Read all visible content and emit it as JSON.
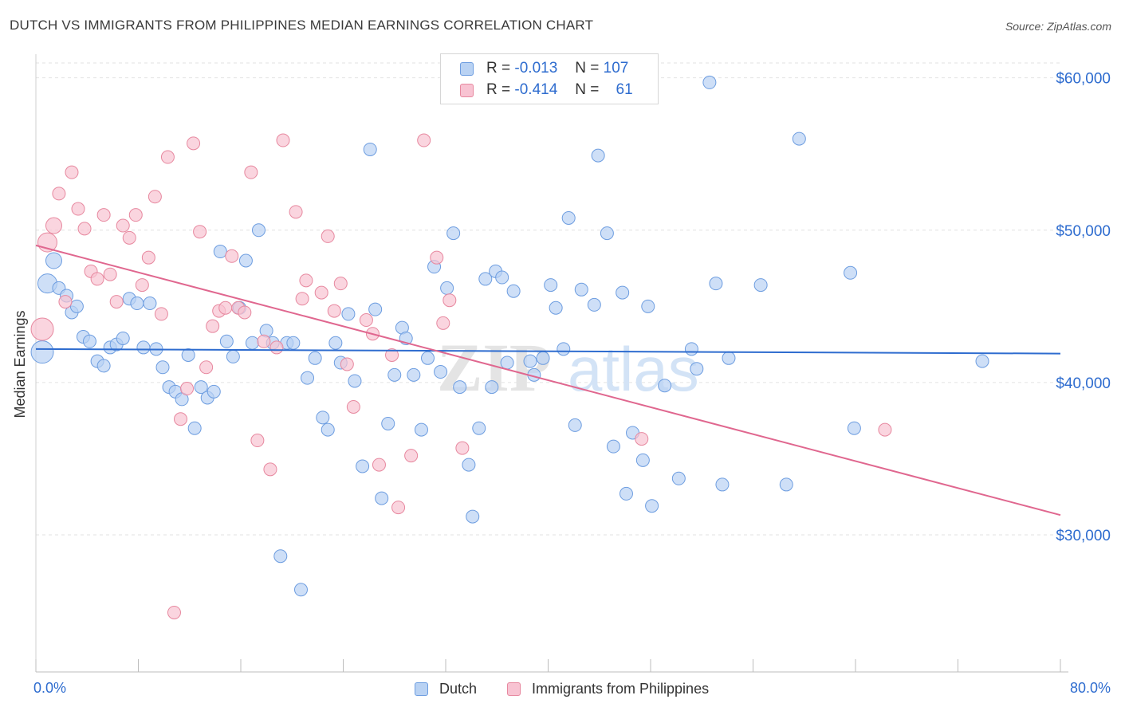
{
  "header": {
    "title": "DUTCH VS IMMIGRANTS FROM PHILIPPINES MEDIAN EARNINGS CORRELATION CHART",
    "source": "Source: ZipAtlas.com"
  },
  "legend_box": {
    "rows": [
      {
        "r_label": "R =",
        "r_value": "-0.013",
        "n_label": "N =",
        "n_value": "107"
      },
      {
        "r_label": "R =",
        "r_value": "-0.414",
        "n_label": "N =",
        "n_value": "61"
      }
    ]
  },
  "bottom_legend": {
    "series1": "Dutch",
    "series2": "Immigrants from Philippines"
  },
  "watermark": {
    "zip": "ZIP",
    "atlas": "atlas"
  },
  "colors": {
    "blue_fill": "#b9d2f3",
    "blue_stroke": "#6d9de0",
    "blue_line": "#2e6ccf",
    "pink_fill": "#f8c3d2",
    "pink_stroke": "#e7889f",
    "pink_line": "#e0678f",
    "tick_label": "#2e6ccf",
    "grid": "#e2e2e2"
  },
  "chart_data": {
    "type": "scatter",
    "title": "DUTCH VS IMMIGRANTS FROM PHILIPPINES MEDIAN EARNINGS CORRELATION CHART",
    "xlabel": "",
    "ylabel": "Median Earnings",
    "xlim": [
      0,
      80
    ],
    "ylim": [
      21000,
      61500
    ],
    "x_tick_labels": [
      {
        "value": 0,
        "label": "0.0%"
      },
      {
        "value": 80,
        "label": "80.0%"
      }
    ],
    "y_ticks": [
      {
        "value": 30000,
        "label": "$30,000"
      },
      {
        "value": 40000,
        "label": "$40,000"
      },
      {
        "value": 50000,
        "label": "$50,000"
      },
      {
        "value": 60000,
        "label": "$60,000"
      }
    ],
    "grid": "horizontal dashed",
    "legend_position": "top-center",
    "series": [
      {
        "name": "Dutch",
        "r": -0.013,
        "n": 107,
        "trend": {
          "x": [
            0,
            80
          ],
          "y": [
            42200,
            41900
          ]
        },
        "points": [
          [
            0.5,
            42000
          ],
          [
            0.9,
            46500
          ],
          [
            1.4,
            48000
          ],
          [
            1.8,
            46200
          ],
          [
            2.4,
            45700
          ],
          [
            2.8,
            44600
          ],
          [
            3.2,
            45000
          ],
          [
            3.7,
            43000
          ],
          [
            4.2,
            42700
          ],
          [
            4.8,
            41400
          ],
          [
            5.3,
            41100
          ],
          [
            5.8,
            42300
          ],
          [
            6.3,
            42500
          ],
          [
            6.8,
            42900
          ],
          [
            7.3,
            45500
          ],
          [
            7.9,
            45200
          ],
          [
            8.4,
            42300
          ],
          [
            8.9,
            45200
          ],
          [
            9.4,
            42200
          ],
          [
            9.9,
            41000
          ],
          [
            10.4,
            39700
          ],
          [
            10.9,
            39400
          ],
          [
            11.4,
            38900
          ],
          [
            11.9,
            41800
          ],
          [
            12.4,
            37000
          ],
          [
            12.9,
            39700
          ],
          [
            13.4,
            39000
          ],
          [
            13.9,
            39400
          ],
          [
            14.4,
            48600
          ],
          [
            14.9,
            42700
          ],
          [
            15.4,
            41700
          ],
          [
            15.9,
            44900
          ],
          [
            16.4,
            48000
          ],
          [
            16.9,
            42600
          ],
          [
            17.4,
            50000
          ],
          [
            18.0,
            43400
          ],
          [
            18.5,
            42600
          ],
          [
            19.1,
            28600
          ],
          [
            19.6,
            42600
          ],
          [
            20.1,
            42600
          ],
          [
            20.7,
            26400
          ],
          [
            21.2,
            40300
          ],
          [
            21.8,
            41600
          ],
          [
            22.4,
            37700
          ],
          [
            22.8,
            36900
          ],
          [
            23.4,
            42600
          ],
          [
            23.8,
            41300
          ],
          [
            24.4,
            44500
          ],
          [
            24.9,
            40100
          ],
          [
            25.5,
            34500
          ],
          [
            26.1,
            55300
          ],
          [
            26.5,
            44800
          ],
          [
            27.0,
            32400
          ],
          [
            27.5,
            37300
          ],
          [
            28.0,
            40500
          ],
          [
            28.6,
            43600
          ],
          [
            28.9,
            42900
          ],
          [
            29.5,
            40500
          ],
          [
            30.1,
            36900
          ],
          [
            30.6,
            41600
          ],
          [
            31.1,
            47600
          ],
          [
            31.6,
            40700
          ],
          [
            32.1,
            46200
          ],
          [
            32.6,
            49800
          ],
          [
            33.1,
            39700
          ],
          [
            33.8,
            34600
          ],
          [
            34.1,
            31200
          ],
          [
            34.6,
            37000
          ],
          [
            35.1,
            46800
          ],
          [
            35.6,
            39700
          ],
          [
            35.9,
            47300
          ],
          [
            36.4,
            46900
          ],
          [
            36.8,
            41300
          ],
          [
            37.3,
            46000
          ],
          [
            38.6,
            41400
          ],
          [
            38.9,
            40500
          ],
          [
            39.6,
            41600
          ],
          [
            40.2,
            46400
          ],
          [
            40.6,
            44900
          ],
          [
            41.2,
            42200
          ],
          [
            41.6,
            50800
          ],
          [
            42.1,
            37200
          ],
          [
            42.6,
            46100
          ],
          [
            43.6,
            45100
          ],
          [
            43.9,
            54900
          ],
          [
            44.6,
            49800
          ],
          [
            45.1,
            35800
          ],
          [
            45.8,
            45900
          ],
          [
            46.1,
            32700
          ],
          [
            46.6,
            36700
          ],
          [
            47.4,
            34900
          ],
          [
            47.8,
            45000
          ],
          [
            48.1,
            31900
          ],
          [
            49.1,
            39800
          ],
          [
            50.2,
            33700
          ],
          [
            51.2,
            42200
          ],
          [
            51.6,
            40900
          ],
          [
            52.6,
            59700
          ],
          [
            53.1,
            46500
          ],
          [
            53.6,
            33300
          ],
          [
            54.1,
            41600
          ],
          [
            56.6,
            46400
          ],
          [
            58.6,
            33300
          ],
          [
            59.6,
            56000
          ],
          [
            63.6,
            47200
          ],
          [
            63.9,
            37000
          ],
          [
            73.9,
            41400
          ]
        ]
      },
      {
        "name": "Immigrants from Philippines",
        "r": -0.414,
        "n": 61,
        "trend": {
          "x": [
            0,
            80
          ],
          "y": [
            49000,
            31300
          ]
        },
        "points": [
          [
            0.5,
            43500
          ],
          [
            0.9,
            49200
          ],
          [
            1.4,
            50300
          ],
          [
            1.8,
            52400
          ],
          [
            2.3,
            45300
          ],
          [
            2.8,
            53800
          ],
          [
            3.3,
            51400
          ],
          [
            3.8,
            50100
          ],
          [
            4.3,
            47300
          ],
          [
            4.8,
            46800
          ],
          [
            5.3,
            51000
          ],
          [
            5.8,
            47100
          ],
          [
            6.3,
            45300
          ],
          [
            6.8,
            50300
          ],
          [
            7.3,
            49500
          ],
          [
            7.8,
            51000
          ],
          [
            8.3,
            46400
          ],
          [
            8.8,
            48200
          ],
          [
            9.3,
            52200
          ],
          [
            9.8,
            44500
          ],
          [
            10.3,
            54800
          ],
          [
            10.8,
            24900
          ],
          [
            11.3,
            37600
          ],
          [
            11.8,
            39600
          ],
          [
            12.3,
            55700
          ],
          [
            12.8,
            49900
          ],
          [
            13.3,
            41000
          ],
          [
            13.8,
            43700
          ],
          [
            14.3,
            44700
          ],
          [
            14.8,
            44900
          ],
          [
            15.3,
            48300
          ],
          [
            15.8,
            44900
          ],
          [
            16.3,
            44600
          ],
          [
            16.8,
            53800
          ],
          [
            17.3,
            36200
          ],
          [
            17.8,
            42700
          ],
          [
            18.3,
            34300
          ],
          [
            18.8,
            42300
          ],
          [
            19.3,
            55900
          ],
          [
            20.3,
            51200
          ],
          [
            20.8,
            45500
          ],
          [
            21.1,
            46700
          ],
          [
            22.3,
            45900
          ],
          [
            22.8,
            49600
          ],
          [
            23.3,
            44700
          ],
          [
            23.8,
            46500
          ],
          [
            24.3,
            41200
          ],
          [
            24.8,
            38400
          ],
          [
            25.8,
            44100
          ],
          [
            26.3,
            43200
          ],
          [
            26.8,
            34600
          ],
          [
            27.8,
            41800
          ],
          [
            28.3,
            31800
          ],
          [
            29.3,
            35200
          ],
          [
            30.3,
            55900
          ],
          [
            31.3,
            48200
          ],
          [
            31.8,
            43900
          ],
          [
            32.3,
            45400
          ],
          [
            33.3,
            35700
          ],
          [
            47.3,
            36300
          ],
          [
            66.3,
            36900
          ]
        ]
      }
    ]
  }
}
